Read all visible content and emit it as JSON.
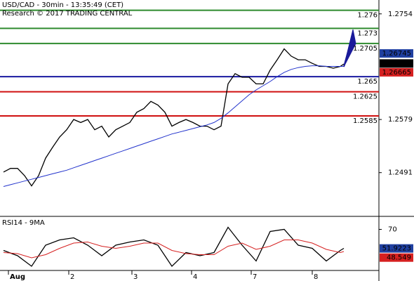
{
  "chart_data": [
    {
      "type": "line",
      "title": "USD/CAD - 30min - 13:35:49 (CET)",
      "subtitle": "Research © 2017 TRADING CENTRAL",
      "xlim": [
        0,
        54
      ],
      "ylim": [
        1.2422,
        1.2777
      ],
      "yticks": [
        1.2754,
        1.2579,
        1.2491
      ],
      "x": [
        0.5,
        1.5,
        2.5,
        3.5,
        4.5,
        5.5,
        6.5,
        7.5,
        8.5,
        9.5,
        10.5,
        11.5,
        12.5,
        13.5,
        14.5,
        15.5,
        16.5,
        17.5,
        18.5,
        19.5,
        20.5,
        21.5,
        22.5,
        23.5,
        24.5,
        25.5,
        26.5,
        27.5,
        28.5,
        29.5,
        30.5,
        31.5,
        32.5,
        33.5,
        34.5,
        35.5,
        36.5,
        37.5,
        38.5,
        39.5,
        40.5,
        41.5,
        42.5,
        43.5,
        44.5,
        45.5,
        46.5,
        47.5,
        48.5,
        49.0
      ],
      "series": [
        {
          "color": "#000000",
          "values": [
            1.2492,
            1.2498,
            1.2498,
            1.2486,
            1.2469,
            1.2486,
            1.2515,
            1.2533,
            1.255,
            1.2562,
            1.2579,
            1.2574,
            1.2579,
            1.2562,
            1.2568,
            1.255,
            1.2562,
            1.2568,
            1.2574,
            1.2591,
            1.2597,
            1.2609,
            1.2603,
            1.2591,
            1.2568,
            1.2574,
            1.2579,
            1.2574,
            1.2568,
            1.2568,
            1.2562,
            1.2568,
            1.2638,
            1.2655,
            1.2649,
            1.2649,
            1.2638,
            1.2638,
            1.2661,
            1.2678,
            1.2696,
            1.2684,
            1.2678,
            1.2678,
            1.2672,
            1.2667,
            1.2667,
            1.2664,
            1.2667,
            1.2671
          ]
        },
        {
          "color": "#2233cc",
          "values": [
            1.2468,
            1.2471,
            1.2474,
            1.2477,
            1.248,
            1.2483,
            1.2486,
            1.2489,
            1.2492,
            1.2495,
            1.2499,
            1.2503,
            1.2507,
            1.2511,
            1.2515,
            1.2519,
            1.2523,
            1.2527,
            1.2531,
            1.2535,
            1.2539,
            1.2543,
            1.2547,
            1.2551,
            1.2555,
            1.2558,
            1.2561,
            1.2564,
            1.2567,
            1.257,
            1.2574,
            1.2581,
            1.259,
            1.26,
            1.261,
            1.262,
            1.2628,
            1.2635,
            1.2642,
            1.265,
            1.2657,
            1.2662,
            1.2665,
            1.2667,
            1.2668,
            1.2668,
            1.2667,
            1.2667,
            1.2667,
            1.2667
          ]
        }
      ],
      "levels": [
        {
          "value": 1.276,
          "color": "#2e8b2e"
        },
        {
          "value": 1.273,
          "color": "#2e8b2e"
        },
        {
          "value": 1.2705,
          "color": "#2e8b2e"
        },
        {
          "value": 1.265,
          "color": "#1a1aa0"
        },
        {
          "value": 1.2625,
          "color": "#d01010"
        },
        {
          "value": 1.2585,
          "color": "#d01010"
        }
      ],
      "price_tags": [
        {
          "value": 1.26745,
          "color": "#1f3fa0"
        },
        {
          "value": 1.26718,
          "color": "#000000"
        },
        {
          "value": 1.26665,
          "color": "#d62020"
        }
      ]
    },
    {
      "type": "line",
      "title": "RSI14 - 9MA",
      "xlim": [
        0,
        54
      ],
      "ylim": [
        31,
        81
      ],
      "yticks": [
        70
      ],
      "x": [
        0.5,
        2.5,
        4.5,
        6.5,
        8.5,
        10.5,
        12.5,
        14.5,
        16.5,
        18.5,
        20.5,
        22.5,
        24.5,
        26.5,
        28.5,
        30.5,
        32.5,
        34.5,
        36.5,
        38.5,
        40.5,
        42.5,
        44.5,
        46.5,
        48.5,
        49.0
      ],
      "xticks": [
        {
          "value": 1.2,
          "label": "Aug"
        },
        {
          "value": 9.8,
          "label": "2"
        },
        {
          "value": 18.8,
          "label": "3"
        },
        {
          "value": 27.3,
          "label": "4"
        },
        {
          "value": 35.8,
          "label": "7"
        },
        {
          "value": 44.5,
          "label": "8"
        }
      ],
      "series": [
        {
          "color": "#000000",
          "values": [
            50,
            45,
            35,
            55,
            60,
            62,
            55,
            45,
            55,
            58,
            60,
            55,
            35,
            48,
            45,
            48,
            72,
            55,
            40,
            68,
            70,
            55,
            52,
            40,
            50,
            52
          ]
        },
        {
          "color": "#d62020",
          "values": [
            48,
            47,
            43,
            46,
            52,
            57,
            58,
            54,
            52,
            54,
            57,
            57,
            50,
            47,
            46,
            46,
            54,
            57,
            51,
            54,
            60,
            60,
            57,
            51,
            48,
            49
          ]
        }
      ],
      "price_tags": [
        {
          "value": 51.9223,
          "color": "#1f3fa0"
        },
        {
          "value": 48.549,
          "color": "#d62020"
        }
      ]
    }
  ]
}
